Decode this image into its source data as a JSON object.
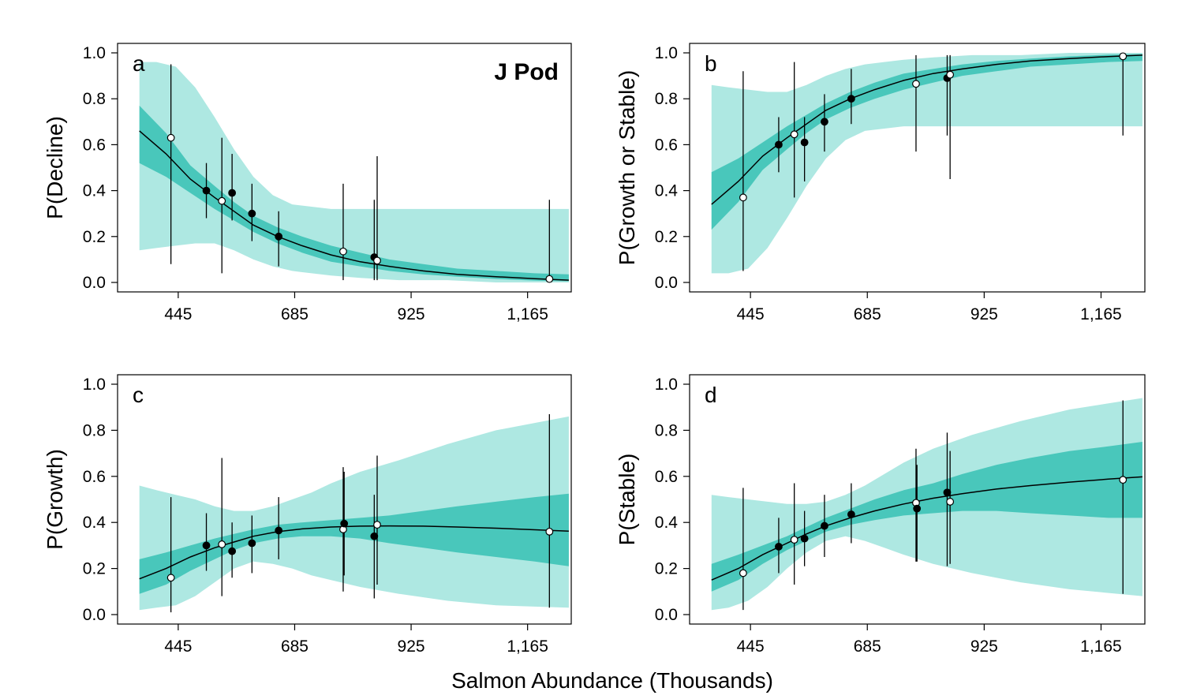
{
  "xlabel": "Salmon Abundance (Thousands)",
  "colors": {
    "band_outer": "#aee8e2",
    "band_inner": "#49c7bb",
    "line": "#000000",
    "open_point": "#ffffff",
    "filled_point": "#000000"
  },
  "chart_data": [
    {
      "type": "line",
      "panel": "a",
      "annotation": "J Pod",
      "ylabel": "P(Decline)",
      "xlim": [
        320,
        1255
      ],
      "ylim": [
        0,
        1
      ],
      "xticks": [
        445,
        685,
        925,
        1165
      ],
      "xtick_labels": [
        "445",
        "685",
        "925",
        "1,165"
      ],
      "yticks": [
        0,
        0.2,
        0.4,
        0.6,
        0.8,
        1.0
      ],
      "ytick_labels": [
        "0.0",
        "0.2",
        "0.4",
        "0.6",
        "0.8",
        "1.0"
      ],
      "curve": {
        "x": [
          365,
          420,
          470,
          520,
          560,
          600,
          650,
          700,
          760,
          820,
          880,
          950,
          1020,
          1100,
          1180,
          1250
        ],
        "y": [
          0.66,
          0.56,
          0.45,
          0.37,
          0.31,
          0.25,
          0.2,
          0.16,
          0.12,
          0.09,
          0.07,
          0.05,
          0.035,
          0.025,
          0.016,
          0.01
        ]
      },
      "band_outer": {
        "x": [
          365,
          400,
          440,
          480,
          520,
          560,
          600,
          640,
          680,
          720,
          760,
          820,
          900,
          1000,
          1100,
          1250
        ],
        "upper": [
          0.96,
          0.96,
          0.94,
          0.85,
          0.72,
          0.58,
          0.46,
          0.38,
          0.34,
          0.33,
          0.32,
          0.32,
          0.32,
          0.32,
          0.32,
          0.32
        ],
        "lower": [
          0.14,
          0.15,
          0.16,
          0.17,
          0.17,
          0.14,
          0.1,
          0.07,
          0.05,
          0.04,
          0.03,
          0.02,
          0.01,
          0.01,
          0.0,
          0.0
        ]
      },
      "band_inner": {
        "x": [
          365,
          420,
          470,
          520,
          560,
          600,
          650,
          700,
          760,
          820,
          880,
          950,
          1020,
          1100,
          1180,
          1250
        ],
        "upper": [
          0.77,
          0.65,
          0.51,
          0.42,
          0.35,
          0.29,
          0.24,
          0.2,
          0.16,
          0.13,
          0.1,
          0.08,
          0.06,
          0.05,
          0.04,
          0.035
        ],
        "lower": [
          0.52,
          0.46,
          0.39,
          0.32,
          0.27,
          0.22,
          0.17,
          0.13,
          0.09,
          0.07,
          0.05,
          0.035,
          0.025,
          0.015,
          0.008,
          0.005
        ]
      },
      "points": [
        {
          "x": 430,
          "y": 0.63,
          "lo": 0.08,
          "hi": 0.95,
          "open": true
        },
        {
          "x": 503,
          "y": 0.4,
          "lo": 0.28,
          "hi": 0.52,
          "open": false
        },
        {
          "x": 535,
          "y": 0.355,
          "lo": 0.04,
          "hi": 0.63,
          "open": true
        },
        {
          "x": 556,
          "y": 0.39,
          "lo": 0.27,
          "hi": 0.56,
          "open": false
        },
        {
          "x": 597,
          "y": 0.3,
          "lo": 0.18,
          "hi": 0.43,
          "open": false
        },
        {
          "x": 652,
          "y": 0.2,
          "lo": 0.07,
          "hi": 0.31,
          "open": false
        },
        {
          "x": 785,
          "y": 0.135,
          "lo": 0.01,
          "hi": 0.43,
          "open": true
        },
        {
          "x": 849,
          "y": 0.11,
          "lo": 0.01,
          "hi": 0.36,
          "open": false
        },
        {
          "x": 855,
          "y": 0.095,
          "lo": 0.01,
          "hi": 0.55,
          "open": true
        },
        {
          "x": 1210,
          "y": 0.015,
          "lo": 0.0,
          "hi": 0.36,
          "open": true
        }
      ]
    },
    {
      "type": "line",
      "panel": "b",
      "ylabel": "P(Growth or Stable)",
      "xlim": [
        320,
        1255
      ],
      "ylim": [
        0,
        1
      ],
      "xticks": [
        445,
        685,
        925,
        1165
      ],
      "xtick_labels": [
        "445",
        "685",
        "925",
        "1,165"
      ],
      "yticks": [
        0,
        0.2,
        0.4,
        0.6,
        0.8,
        1.0
      ],
      "ytick_labels": [
        "0.0",
        "0.2",
        "0.4",
        "0.6",
        "0.8",
        "1.0"
      ],
      "curve": {
        "x": [
          365,
          420,
          470,
          520,
          560,
          600,
          650,
          700,
          760,
          820,
          880,
          950,
          1020,
          1100,
          1180,
          1250
        ],
        "y": [
          0.34,
          0.44,
          0.55,
          0.63,
          0.69,
          0.75,
          0.8,
          0.84,
          0.88,
          0.91,
          0.93,
          0.95,
          0.965,
          0.975,
          0.984,
          0.99
        ]
      },
      "band_outer": {
        "x": [
          365,
          400,
          440,
          480,
          520,
          560,
          600,
          640,
          680,
          720,
          760,
          820,
          900,
          1000,
          1100,
          1250
        ],
        "upper": [
          0.86,
          0.85,
          0.84,
          0.83,
          0.83,
          0.86,
          0.9,
          0.93,
          0.95,
          0.96,
          0.97,
          0.98,
          0.99,
          0.99,
          1.0,
          1.0
        ],
        "lower": [
          0.04,
          0.04,
          0.06,
          0.15,
          0.28,
          0.42,
          0.54,
          0.62,
          0.66,
          0.67,
          0.68,
          0.68,
          0.68,
          0.68,
          0.68,
          0.68
        ]
      },
      "band_inner": {
        "x": [
          365,
          420,
          470,
          520,
          560,
          600,
          650,
          700,
          760,
          820,
          880,
          950,
          1020,
          1100,
          1180,
          1250
        ],
        "upper": [
          0.48,
          0.54,
          0.61,
          0.68,
          0.73,
          0.78,
          0.83,
          0.87,
          0.91,
          0.93,
          0.95,
          0.965,
          0.975,
          0.985,
          0.992,
          0.995
        ],
        "lower": [
          0.23,
          0.35,
          0.49,
          0.58,
          0.65,
          0.71,
          0.76,
          0.8,
          0.84,
          0.87,
          0.9,
          0.92,
          0.94,
          0.95,
          0.96,
          0.965
        ]
      },
      "points": [
        {
          "x": 430,
          "y": 0.37,
          "lo": 0.05,
          "hi": 0.92,
          "open": true
        },
        {
          "x": 503,
          "y": 0.6,
          "lo": 0.48,
          "hi": 0.72,
          "open": false
        },
        {
          "x": 535,
          "y": 0.645,
          "lo": 0.37,
          "hi": 0.96,
          "open": true
        },
        {
          "x": 556,
          "y": 0.61,
          "lo": 0.44,
          "hi": 0.72,
          "open": false
        },
        {
          "x": 597,
          "y": 0.7,
          "lo": 0.57,
          "hi": 0.82,
          "open": false
        },
        {
          "x": 652,
          "y": 0.8,
          "lo": 0.69,
          "hi": 0.93,
          "open": false
        },
        {
          "x": 785,
          "y": 0.865,
          "lo": 0.57,
          "hi": 0.99,
          "open": true
        },
        {
          "x": 849,
          "y": 0.89,
          "lo": 0.64,
          "hi": 0.99,
          "open": false
        },
        {
          "x": 855,
          "y": 0.905,
          "lo": 0.45,
          "hi": 0.99,
          "open": true
        },
        {
          "x": 1210,
          "y": 0.985,
          "lo": 0.64,
          "hi": 1.0,
          "open": true
        }
      ]
    },
    {
      "type": "line",
      "panel": "c",
      "ylabel": "P(Growth)",
      "xlim": [
        320,
        1255
      ],
      "ylim": [
        0,
        1
      ],
      "xticks": [
        445,
        685,
        925,
        1165
      ],
      "xtick_labels": [
        "445",
        "685",
        "925",
        "1,165"
      ],
      "yticks": [
        0,
        0.2,
        0.4,
        0.6,
        0.8,
        1.0
      ],
      "ytick_labels": [
        "0.0",
        "0.2",
        "0.4",
        "0.6",
        "0.8",
        "1.0"
      ],
      "curve": {
        "x": [
          365,
          420,
          470,
          520,
          560,
          600,
          650,
          700,
          760,
          820,
          880,
          950,
          1020,
          1100,
          1180,
          1250
        ],
        "y": [
          0.155,
          0.2,
          0.25,
          0.29,
          0.315,
          0.34,
          0.36,
          0.372,
          0.38,
          0.384,
          0.385,
          0.384,
          0.38,
          0.375,
          0.368,
          0.362
        ]
      },
      "band_outer": {
        "x": [
          365,
          400,
          440,
          480,
          520,
          560,
          600,
          640,
          680,
          720,
          760,
          820,
          900,
          1000,
          1100,
          1250
        ],
        "upper": [
          0.56,
          0.54,
          0.52,
          0.5,
          0.47,
          0.45,
          0.45,
          0.47,
          0.5,
          0.53,
          0.57,
          0.62,
          0.67,
          0.74,
          0.8,
          0.86
        ],
        "lower": [
          0.02,
          0.03,
          0.04,
          0.08,
          0.14,
          0.2,
          0.23,
          0.22,
          0.2,
          0.17,
          0.15,
          0.12,
          0.09,
          0.06,
          0.04,
          0.03
        ]
      },
      "band_inner": {
        "x": [
          365,
          420,
          470,
          520,
          560,
          600,
          650,
          700,
          760,
          820,
          880,
          950,
          1020,
          1100,
          1180,
          1250
        ],
        "upper": [
          0.24,
          0.27,
          0.3,
          0.33,
          0.35,
          0.37,
          0.39,
          0.4,
          0.41,
          0.42,
          0.43,
          0.45,
          0.47,
          0.49,
          0.51,
          0.525
        ],
        "lower": [
          0.09,
          0.13,
          0.19,
          0.24,
          0.28,
          0.31,
          0.33,
          0.34,
          0.34,
          0.33,
          0.31,
          0.29,
          0.27,
          0.25,
          0.23,
          0.21
        ]
      },
      "points": [
        {
          "x": 430,
          "y": 0.16,
          "lo": 0.01,
          "hi": 0.51,
          "open": true
        },
        {
          "x": 503,
          "y": 0.3,
          "lo": 0.19,
          "hi": 0.44,
          "open": false
        },
        {
          "x": 535,
          "y": 0.305,
          "lo": 0.08,
          "hi": 0.68,
          "open": true
        },
        {
          "x": 556,
          "y": 0.275,
          "lo": 0.16,
          "hi": 0.4,
          "open": false
        },
        {
          "x": 597,
          "y": 0.31,
          "lo": 0.18,
          "hi": 0.43,
          "open": false
        },
        {
          "x": 652,
          "y": 0.365,
          "lo": 0.24,
          "hi": 0.51,
          "open": false
        },
        {
          "x": 785,
          "y": 0.37,
          "lo": 0.1,
          "hi": 0.64,
          "open": true
        },
        {
          "x": 787,
          "y": 0.395,
          "lo": 0.17,
          "hi": 0.62,
          "open": false
        },
        {
          "x": 849,
          "y": 0.34,
          "lo": 0.07,
          "hi": 0.52,
          "open": false
        },
        {
          "x": 855,
          "y": 0.39,
          "lo": 0.13,
          "hi": 0.69,
          "open": true
        },
        {
          "x": 1210,
          "y": 0.36,
          "lo": 0.03,
          "hi": 0.87,
          "open": true
        }
      ]
    },
    {
      "type": "line",
      "panel": "d",
      "ylabel": "P(Stable)",
      "xlim": [
        320,
        1255
      ],
      "ylim": [
        0,
        1
      ],
      "xticks": [
        445,
        685,
        925,
        1165
      ],
      "xtick_labels": [
        "445",
        "685",
        "925",
        "1,165"
      ],
      "yticks": [
        0,
        0.2,
        0.4,
        0.6,
        0.8,
        1.0
      ],
      "ytick_labels": [
        "0.0",
        "0.2",
        "0.4",
        "0.6",
        "0.8",
        "1.0"
      ],
      "curve": {
        "x": [
          365,
          420,
          470,
          520,
          560,
          600,
          650,
          700,
          760,
          820,
          880,
          950,
          1020,
          1100,
          1180,
          1250
        ],
        "y": [
          0.15,
          0.2,
          0.26,
          0.31,
          0.35,
          0.385,
          0.42,
          0.45,
          0.48,
          0.505,
          0.525,
          0.545,
          0.56,
          0.575,
          0.588,
          0.598
        ]
      },
      "band_outer": {
        "x": [
          365,
          400,
          440,
          480,
          520,
          560,
          600,
          640,
          680,
          720,
          760,
          820,
          900,
          1000,
          1100,
          1250
        ],
        "upper": [
          0.52,
          0.51,
          0.5,
          0.49,
          0.48,
          0.48,
          0.49,
          0.52,
          0.56,
          0.61,
          0.66,
          0.72,
          0.78,
          0.84,
          0.89,
          0.94
        ],
        "lower": [
          0.02,
          0.03,
          0.06,
          0.12,
          0.2,
          0.27,
          0.32,
          0.34,
          0.32,
          0.29,
          0.26,
          0.22,
          0.18,
          0.14,
          0.11,
          0.08
        ]
      },
      "band_inner": {
        "x": [
          365,
          420,
          470,
          520,
          560,
          600,
          650,
          700,
          760,
          820,
          880,
          950,
          1020,
          1100,
          1180,
          1250
        ],
        "upper": [
          0.22,
          0.26,
          0.3,
          0.34,
          0.38,
          0.42,
          0.46,
          0.5,
          0.54,
          0.57,
          0.61,
          0.65,
          0.68,
          0.71,
          0.73,
          0.75
        ],
        "lower": [
          0.1,
          0.15,
          0.22,
          0.28,
          0.32,
          0.36,
          0.39,
          0.41,
          0.43,
          0.44,
          0.45,
          0.45,
          0.44,
          0.43,
          0.42,
          0.42
        ]
      },
      "points": [
        {
          "x": 430,
          "y": 0.18,
          "lo": 0.02,
          "hi": 0.55,
          "open": true
        },
        {
          "x": 503,
          "y": 0.295,
          "lo": 0.18,
          "hi": 0.42,
          "open": false
        },
        {
          "x": 535,
          "y": 0.325,
          "lo": 0.13,
          "hi": 0.57,
          "open": true
        },
        {
          "x": 556,
          "y": 0.33,
          "lo": 0.21,
          "hi": 0.45,
          "open": false
        },
        {
          "x": 597,
          "y": 0.385,
          "lo": 0.25,
          "hi": 0.52,
          "open": false
        },
        {
          "x": 652,
          "y": 0.435,
          "lo": 0.31,
          "hi": 0.57,
          "open": false
        },
        {
          "x": 785,
          "y": 0.485,
          "lo": 0.23,
          "hi": 0.72,
          "open": true
        },
        {
          "x": 787,
          "y": 0.46,
          "lo": 0.23,
          "hi": 0.65,
          "open": false
        },
        {
          "x": 849,
          "y": 0.53,
          "lo": 0.21,
          "hi": 0.79,
          "open": false
        },
        {
          "x": 855,
          "y": 0.49,
          "lo": 0.22,
          "hi": 0.71,
          "open": true
        },
        {
          "x": 1210,
          "y": 0.585,
          "lo": 0.09,
          "hi": 0.93,
          "open": true
        }
      ]
    }
  ]
}
